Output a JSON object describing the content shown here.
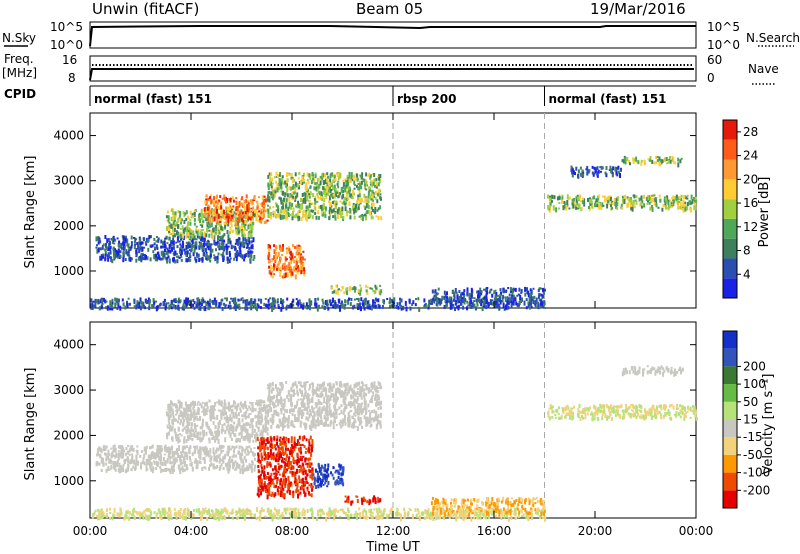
{
  "header": {
    "site": "Unwin (fitACF)",
    "beam": "Beam 05",
    "date": "19/Mar/2016"
  },
  "top_panels": {
    "nsky": {
      "left_label": "N.Sky",
      "right_label": "N.Search",
      "left_ticks": [
        "10^5",
        "10^0"
      ],
      "right_ticks": [
        "10^5",
        "10^0"
      ]
    },
    "freq": {
      "left_label": "Freq.",
      "left_unit": "[MHz]",
      "right_label": "Nave",
      "left_ticks": [
        "16",
        "8"
      ],
      "right_ticks": [
        "60",
        "0"
      ]
    },
    "cpid": {
      "label": "CPID",
      "modes": [
        {
          "name": "normal (fast) 151",
          "start": 0,
          "end": 12
        },
        {
          "name": "rbsp 200",
          "start": 12,
          "end": 18
        },
        {
          "name": "normal (fast) 151",
          "start": 18,
          "end": 24
        }
      ]
    }
  },
  "colors": {
    "power": [
      "#1a22e6",
      "#2a4fb0",
      "#3e7f5e",
      "#4fa85a",
      "#a0d040",
      "#ffcc33",
      "#ff9933",
      "#ff5c1a",
      "#e61a0a"
    ],
    "velocity": [
      "#e60000",
      "#f04a00",
      "#ff9900",
      "#f2d27a",
      "#c8c8c0",
      "#b6e27a",
      "#66bb44",
      "#3a7a30",
      "#3355bb",
      "#1530c8"
    ]
  },
  "chart_data": [
    {
      "type": "heatmap",
      "title": "Power",
      "xlabel": "",
      "ylabel": "Slant Range [km]",
      "xlim": [
        0,
        24
      ],
      "ylim": [
        180,
        4500
      ],
      "xticks": [
        "00:00",
        "04:00",
        "08:00",
        "12:00",
        "16:00",
        "20:00",
        "00:00"
      ],
      "yticks": [
        1000,
        2000,
        3000,
        4000
      ],
      "colorbar": {
        "label": "Power [dB]",
        "ticks": [
          4,
          8,
          12,
          16,
          20,
          24,
          28
        ],
        "range": [
          0,
          30
        ]
      },
      "mode_boundaries_hours": [
        12,
        18
      ],
      "scatter_regions": [
        {
          "t": [
            0.2,
            6.5
          ],
          "r": [
            1250,
            1800
          ],
          "level": "low"
        },
        {
          "t": [
            3.0,
            6.5
          ],
          "r": [
            1800,
            2400
          ],
          "level": "mid"
        },
        {
          "t": [
            4.5,
            7.0
          ],
          "r": [
            2100,
            2700
          ],
          "level": "high"
        },
        {
          "t": [
            7.0,
            8.5
          ],
          "r": [
            900,
            1600
          ],
          "level": "high"
        },
        {
          "t": [
            7.0,
            11.5
          ],
          "r": [
            2200,
            3200
          ],
          "level": "mid"
        },
        {
          "t": [
            9.5,
            11.5
          ],
          "r": [
            550,
            700
          ],
          "level": "mid"
        },
        {
          "t": [
            0.0,
            18.0
          ],
          "r": [
            200,
            420
          ],
          "level": "low"
        },
        {
          "t": [
            13.5,
            18.0
          ],
          "r": [
            300,
            650
          ],
          "level": "low"
        },
        {
          "t": [
            18.1,
            24.0
          ],
          "r": [
            2400,
            2700
          ],
          "level": "mid"
        },
        {
          "t": [
            21.0,
            23.5
          ],
          "r": [
            3400,
            3550
          ],
          "level": "mid"
        },
        {
          "t": [
            19.0,
            21.0
          ],
          "r": [
            3150,
            3350
          ],
          "level": "low"
        }
      ]
    },
    {
      "type": "heatmap",
      "title": "Velocity",
      "xlabel": "Time UT",
      "ylabel": "Slant Range [km]",
      "xlim": [
        0,
        24
      ],
      "ylim": [
        180,
        4500
      ],
      "xticks": [
        "00:00",
        "04:00",
        "08:00",
        "12:00",
        "16:00",
        "20:00",
        "00:00"
      ],
      "yticks": [
        1000,
        2000,
        3000,
        4000
      ],
      "colorbar": {
        "label": "Velocity [m s⁻¹]",
        "ticks": [
          -200,
          -100,
          -50,
          -15,
          15,
          50,
          100,
          200
        ]
      },
      "mode_boundaries_hours": [
        12,
        18
      ],
      "scatter_regions": [
        {
          "t": [
            0.2,
            6.5
          ],
          "r": [
            1250,
            1800
          ],
          "level": "grey"
        },
        {
          "t": [
            3.0,
            7.0
          ],
          "r": [
            1900,
            2800
          ],
          "level": "grey"
        },
        {
          "t": [
            6.6,
            8.8
          ],
          "r": [
            700,
            2000
          ],
          "level": "red"
        },
        {
          "t": [
            8.8,
            10.0
          ],
          "r": [
            900,
            1400
          ],
          "level": "blue"
        },
        {
          "t": [
            7.0,
            11.5
          ],
          "r": [
            2200,
            3200
          ],
          "level": "grey"
        },
        {
          "t": [
            10.0,
            11.5
          ],
          "r": [
            550,
            680
          ],
          "level": "red"
        },
        {
          "t": [
            0.0,
            18.0
          ],
          "r": [
            200,
            420
          ],
          "level": "yellow"
        },
        {
          "t": [
            13.5,
            18.0
          ],
          "r": [
            300,
            650
          ],
          "level": "orange"
        },
        {
          "t": [
            18.1,
            24.0
          ],
          "r": [
            2400,
            2700
          ],
          "level": "yellow"
        },
        {
          "t": [
            21.0,
            23.5
          ],
          "r": [
            3400,
            3550
          ],
          "level": "grey"
        }
      ]
    }
  ]
}
